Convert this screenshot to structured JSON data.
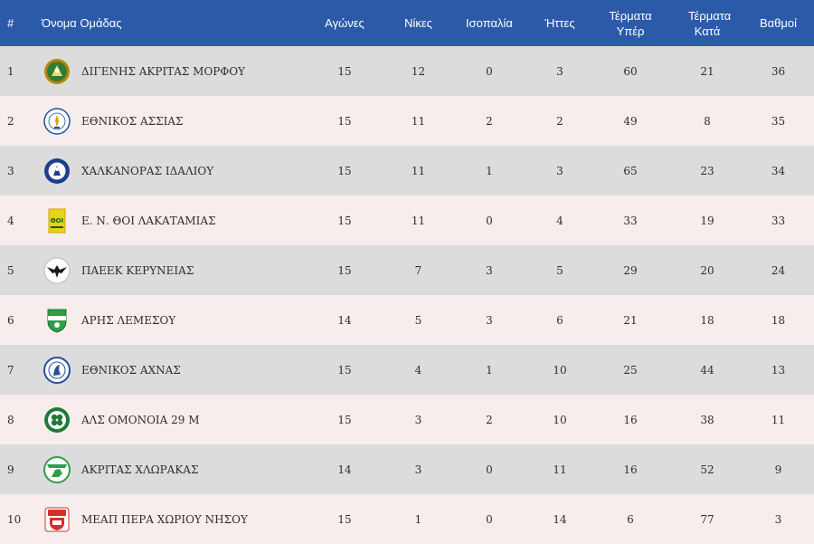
{
  "headers": {
    "pos": "#",
    "team": "Όνομα Ομάδας",
    "played": "Αγώνες",
    "wins": "Νίκες",
    "draws": "Ισοπαλία",
    "losses": "Ήττες",
    "goals_for": "Τέρματα Υπέρ",
    "goals_against": "Τέρματα Κατά",
    "points": "Βαθμοί"
  },
  "rows": [
    {
      "pos": "1",
      "team": "ΔΙΓΕΝΗΣ ΑΚΡΙΤΑΣ ΜΟΡΦΟΥ",
      "played": "15",
      "wins": "12",
      "draws": "0",
      "losses": "3",
      "goals_for": "60",
      "goals_against": "21",
      "points": "36",
      "logo_icon": "digenis-akritas-crest-icon",
      "logo_color": "#2e7d32"
    },
    {
      "pos": "2",
      "team": "ΕΘΝΙΚΟΣ ΑΣΣΙΑΣ",
      "played": "15",
      "wins": "11",
      "draws": "2",
      "losses": "2",
      "goals_for": "49",
      "goals_against": "8",
      "points": "35",
      "logo_icon": "ethnikos-assias-crest-icon",
      "logo_color": "#1f4fa0"
    },
    {
      "pos": "3",
      "team": "ΧΑΛΚΑΝΟΡΑΣ ΙΔΑΛΙΟΥ",
      "played": "15",
      "wins": "11",
      "draws": "1",
      "losses": "3",
      "goals_for": "65",
      "goals_against": "23",
      "points": "34",
      "logo_icon": "chalkanoras-crest-icon",
      "logo_color": "#1c3f8c"
    },
    {
      "pos": "4",
      "team": "Ε. Ν. ΘΟΙ ΛΑΚΑΤΑΜΙΑΣ",
      "played": "15",
      "wins": "11",
      "draws": "0",
      "losses": "4",
      "goals_for": "33",
      "goals_against": "19",
      "points": "33",
      "logo_icon": "thoi-lakatamias-crest-icon",
      "logo_color": "#e9d21a"
    },
    {
      "pos": "5",
      "team": "ΠΑΕΕΚ ΚΕΡΥΝΕΙΑΣ",
      "played": "15",
      "wins": "7",
      "draws": "3",
      "losses": "5",
      "goals_for": "29",
      "goals_against": "20",
      "points": "24",
      "logo_icon": "paeek-eagle-crest-icon",
      "logo_color": "#1a1a1a"
    },
    {
      "pos": "6",
      "team": "ΑΡΗΣ ΛΕΜΕΣΟΥ",
      "played": "14",
      "wins": "5",
      "draws": "3",
      "losses": "6",
      "goals_for": "21",
      "goals_against": "18",
      "points": "18",
      "logo_icon": "aris-limassol-crest-icon",
      "logo_color": "#2e9e47"
    },
    {
      "pos": "7",
      "team": "ΕΘΝΙΚΟΣ ΑΧΝΑΣ",
      "played": "15",
      "wins": "4",
      "draws": "1",
      "losses": "10",
      "goals_for": "25",
      "goals_against": "44",
      "points": "13",
      "logo_icon": "ethnikos-achnas-crest-icon",
      "logo_color": "#2a4d9a"
    },
    {
      "pos": "8",
      "team": "ΑΛΣ ΟΜΟΝΟΙΑ 29 Μ",
      "played": "15",
      "wins": "3",
      "draws": "2",
      "losses": "10",
      "goals_for": "16",
      "goals_against": "38",
      "points": "11",
      "logo_icon": "omonia-clover-crest-icon",
      "logo_color": "#1f7a3a"
    },
    {
      "pos": "9",
      "team": "ΑΚΡΙΤΑΣ ΧΛΩΡΑΚΑΣ",
      "played": "14",
      "wins": "3",
      "draws": "0",
      "losses": "11",
      "goals_for": "16",
      "goals_against": "52",
      "points": "9",
      "logo_icon": "akritas-chlorakas-crest-icon",
      "logo_color": "#2e9e47"
    },
    {
      "pos": "10",
      "team": "ΜΕΑΠ ΠΕΡΑ ΧΩΡΙΟΥ ΝΗΣΟΥ",
      "played": "15",
      "wins": "1",
      "draws": "0",
      "losses": "14",
      "goals_for": "6",
      "goals_against": "77",
      "points": "3",
      "logo_icon": "meap-crest-icon",
      "logo_color": "#d32f2f"
    }
  ],
  "colors": {
    "header_bg": "#2b5ba8",
    "row_odd_bg": "#dcdcdc",
    "row_even_bg": "#f7eded"
  }
}
